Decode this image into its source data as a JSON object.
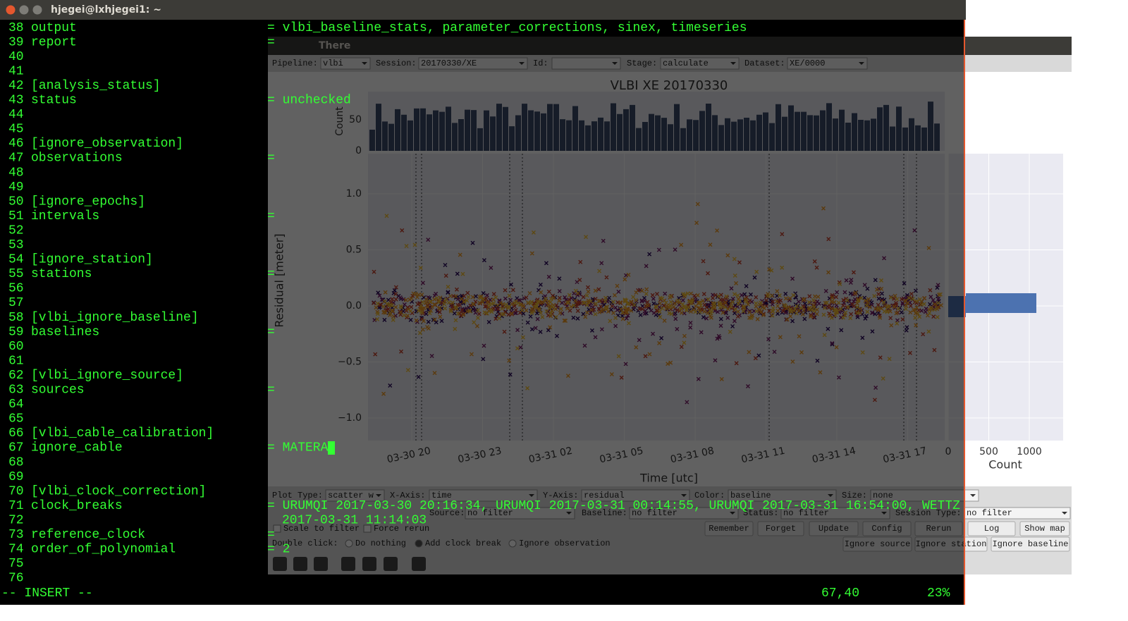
{
  "window_title": "hjegei@lxhjegei1: ~",
  "editor": {
    "lines": [
      {
        "num": "38",
        "key": "output",
        "value": "= vlbi_baseline_stats, parameter_corrections, sinex, timeseries"
      },
      {
        "num": "39",
        "key": "report",
        "value": "="
      },
      {
        "num": "40"
      },
      {
        "num": "41"
      },
      {
        "num": "42",
        "key": "[analysis_status]"
      },
      {
        "num": "43",
        "key": "status",
        "value": "= unchecked"
      },
      {
        "num": "44"
      },
      {
        "num": "45"
      },
      {
        "num": "46",
        "key": "[ignore_observation]"
      },
      {
        "num": "47",
        "key": "observations",
        "value": "="
      },
      {
        "num": "48"
      },
      {
        "num": "49"
      },
      {
        "num": "50",
        "key": "[ignore_epochs]"
      },
      {
        "num": "51",
        "key": "intervals",
        "value": "="
      },
      {
        "num": "52"
      },
      {
        "num": "53"
      },
      {
        "num": "54",
        "key": "[ignore_station]"
      },
      {
        "num": "55",
        "key": "stations",
        "value": "="
      },
      {
        "num": "56"
      },
      {
        "num": "57"
      },
      {
        "num": "58",
        "key": "[vlbi_ignore_baseline]"
      },
      {
        "num": "59",
        "key": "baselines",
        "value": "="
      },
      {
        "num": "60"
      },
      {
        "num": "61"
      },
      {
        "num": "62",
        "key": "[vlbi_ignore_source]"
      },
      {
        "num": "63",
        "key": "sources",
        "value": "="
      },
      {
        "num": "64"
      },
      {
        "num": "65"
      },
      {
        "num": "66",
        "key": "[vlbi_cable_calibration]"
      },
      {
        "num": "67",
        "key": "ignore_cable",
        "value": "= MATERA"
      },
      {
        "num": "68"
      },
      {
        "num": "69"
      },
      {
        "num": "70",
        "key": "[vlbi_clock_correction]"
      },
      {
        "num": "71",
        "key": "clock_breaks",
        "value": "= URUMQI 2017-03-30 20:16:34, URUMQI 2017-03-31 00:14:55, URUMQI 2017-03-31 16:54:00, WETTZ",
        "wrap": "2017-03-31 11:14:03"
      },
      {
        "num": "72"
      },
      {
        "num": "73",
        "key": "reference_clock",
        "value": "="
      },
      {
        "num": "74",
        "key": "order_of_polynomial",
        "value": "= 2"
      },
      {
        "num": "75"
      },
      {
        "num": "76"
      }
    ],
    "mode": "-- INSERT --",
    "position": "67,40",
    "percent": "23%"
  },
  "gui": {
    "title": "There",
    "toolbar": [
      {
        "label": "Pipeline:",
        "value": "vlbi"
      },
      {
        "label": "Session:",
        "value": "20170330/XE"
      },
      {
        "label": "Id:"
      },
      {
        "label": "Stage:",
        "value": "calculate"
      },
      {
        "label": "Dataset:",
        "value": "XE/0000"
      }
    ],
    "plot": {
      "title": "VLBI XE 20170330",
      "hist_ylabel": "Count",
      "hist_yticks": [
        "50",
        "0"
      ],
      "ylabel": "Residual [meter]",
      "yticks": [
        "1.0",
        "0.5",
        "0.0",
        "−0.5",
        "−1.0"
      ],
      "xlabel": "Time [utc]",
      "xticks": [
        "03-30 20",
        "03-30 23",
        "03-31 02",
        "03-31 05",
        "03-31 08",
        "03-31 11",
        "03-31 14",
        "03-31 17"
      ],
      "side_xlabel": "Count",
      "side_xticks": [
        "0",
        "500",
        "1000"
      ]
    },
    "controls_row1": [
      {
        "label": "Plot Type:",
        "value": "scatter w"
      },
      {
        "label": "X-Axis:",
        "value": "time"
      },
      {
        "label": "Y-Axis:",
        "value": "residual"
      },
      {
        "label": "Color:",
        "value": "baseline"
      },
      {
        "label": "Size:",
        "value": "none"
      }
    ],
    "controls_row2": [
      {
        "label": "Source:",
        "value": "no filter"
      },
      {
        "label": "Baseline:",
        "value": "no filter"
      },
      {
        "label": "Status:",
        "value": "no filter"
      },
      {
        "label": "Session Type:",
        "value": "no filter"
      }
    ],
    "checkboxes": [
      "Scale to filter",
      "Force rerun"
    ],
    "buttons_row1": [
      "Remember",
      "Forget",
      "Update",
      "Config",
      "Rerun",
      "Log",
      "Show map"
    ],
    "double_click_label": "Double click:",
    "radios": [
      "Do nothing",
      "Add clock break",
      "Ignore observation"
    ],
    "buttons_row2": [
      "Ignore source",
      "Ignore station",
      "Ignore baseline"
    ]
  }
}
